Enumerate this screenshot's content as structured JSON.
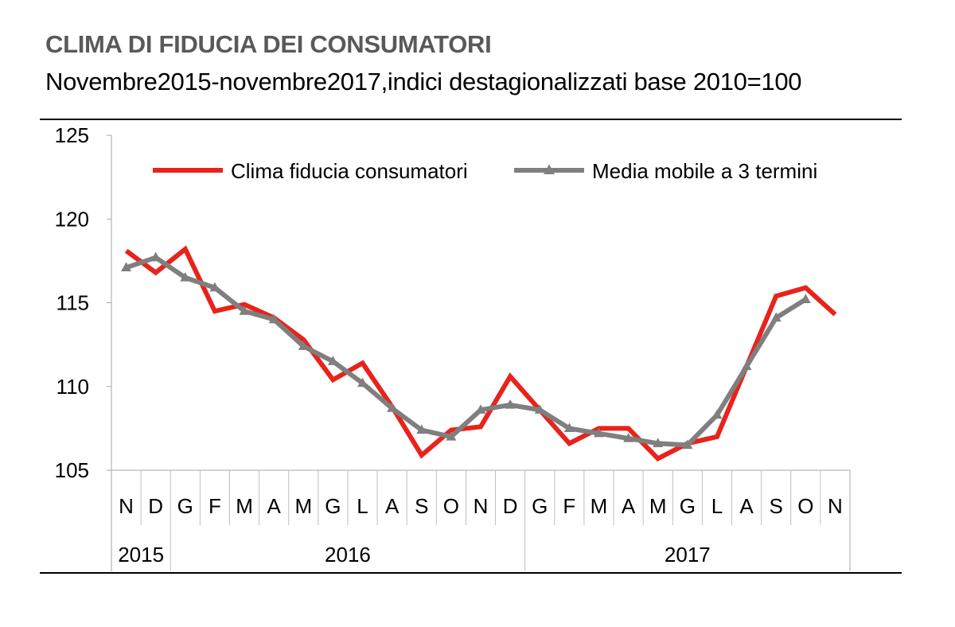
{
  "title": "CLIMA DI FIDUCIA DEI CONSUMATORI",
  "subtitle": "Novembre2015-novembre2017,indici destagionalizzati base 2010=100",
  "colors": {
    "series1": "#e8231c",
    "series2": "#7f7f7f"
  },
  "chart_data": {
    "type": "line",
    "title": "CLIMA DI FIDUCIA DEI CONSUMATORI",
    "subtitle": "Novembre2015-novembre2017,indici destagionalizzati base 2010=100",
    "xlabel": "",
    "ylabel": "",
    "ylim": [
      105,
      125
    ],
    "yticks": [
      105,
      110,
      115,
      120,
      125
    ],
    "grid": false,
    "legend": "top",
    "categories": [
      "N",
      "D",
      "G",
      "F",
      "M",
      "A",
      "M",
      "G",
      "L",
      "A",
      "S",
      "O",
      "N",
      "D",
      "G",
      "F",
      "M",
      "A",
      "M",
      "G",
      "L",
      "A",
      "S",
      "O",
      "N"
    ],
    "years": [
      {
        "label": "2015",
        "span": 2
      },
      {
        "label": "2016",
        "span": 12
      },
      {
        "label": "2017",
        "span": 11
      }
    ],
    "series": [
      {
        "name": "Clima fiducia consumatori",
        "values": [
          118.1,
          116.8,
          118.2,
          114.5,
          114.9,
          114.1,
          112.8,
          110.4,
          111.4,
          108.8,
          105.9,
          107.4,
          107.6,
          110.6,
          108.6,
          106.6,
          107.5,
          107.5,
          105.7,
          106.6,
          107.0,
          111.2,
          115.4,
          115.9,
          114.3
        ]
      },
      {
        "name": "Media mobile a 3 termini",
        "marker": "triangle",
        "values": [
          117.1,
          117.7,
          116.5,
          115.9,
          114.5,
          114.0,
          112.4,
          111.5,
          110.2,
          108.7,
          107.4,
          107.0,
          108.6,
          108.9,
          108.6,
          107.5,
          107.2,
          106.9,
          106.6,
          106.5,
          108.3,
          111.2,
          114.1,
          115.2,
          null
        ]
      }
    ]
  }
}
